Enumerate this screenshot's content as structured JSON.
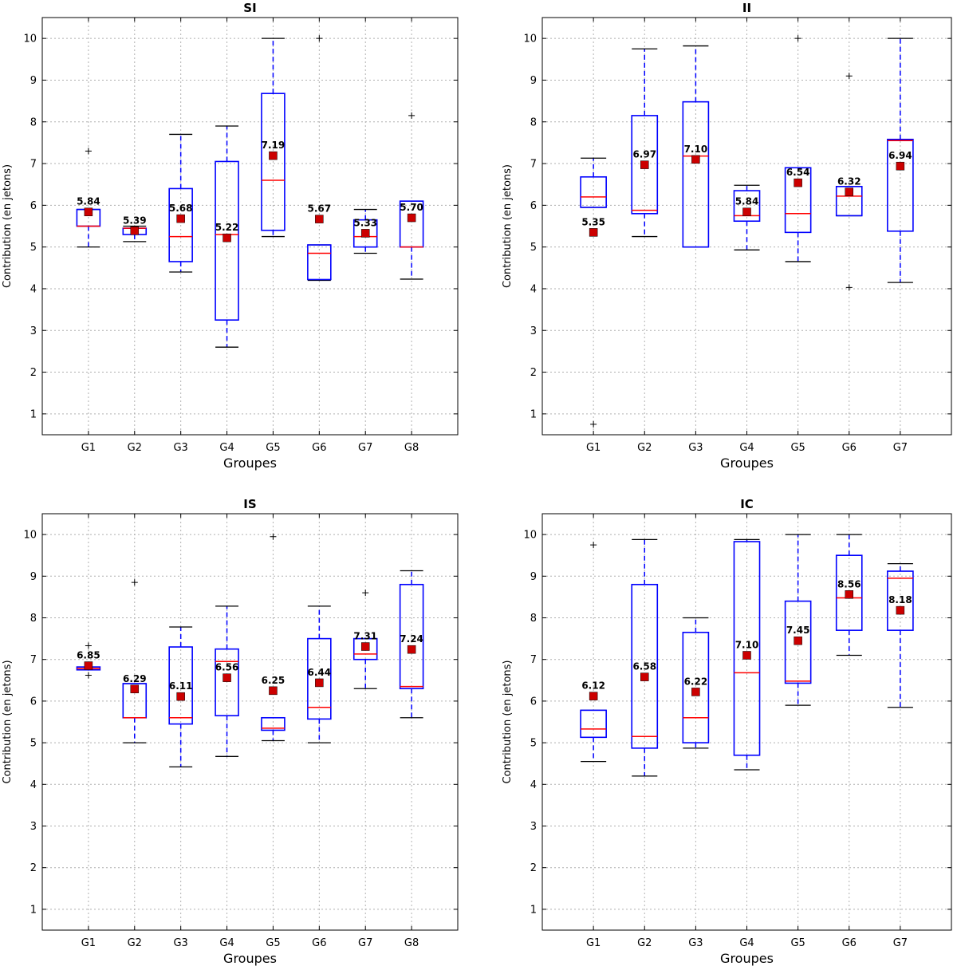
{
  "chart_data": [
    {
      "type": "boxplot",
      "title": "SI",
      "xlabel": "Groupes",
      "ylabel": "Contribution (en jetons)",
      "ylim": [
        0.5,
        10.5
      ],
      "yticks": [
        1,
        2,
        3,
        4,
        5,
        6,
        7,
        8,
        9,
        10
      ],
      "grid": true,
      "categories": [
        "G1",
        "G2",
        "G3",
        "G4",
        "G5",
        "G6",
        "G7",
        "G8"
      ],
      "boxes": [
        {
          "whislo": 5.0,
          "q1": 5.5,
          "med": 5.5,
          "q3": 5.9,
          "whishi": 5.9,
          "fliers": [
            7.3
          ],
          "mean": 5.84,
          "mean_label": "5.84"
        },
        {
          "whislo": 5.13,
          "q1": 5.3,
          "med": 5.45,
          "q3": 5.45,
          "whishi": 5.5,
          "fliers": [],
          "mean": 5.39,
          "mean_label": "5.39"
        },
        {
          "whislo": 4.4,
          "q1": 4.65,
          "med": 5.25,
          "q3": 6.4,
          "whishi": 7.7,
          "fliers": [],
          "mean": 5.68,
          "mean_label": "5.68"
        },
        {
          "whislo": 2.6,
          "q1": 3.25,
          "med": 5.3,
          "q3": 7.05,
          "whishi": 7.9,
          "fliers": [],
          "mean": 5.22,
          "mean_label": "5.22"
        },
        {
          "whislo": 5.25,
          "q1": 5.4,
          "med": 6.6,
          "q3": 8.68,
          "whishi": 10.0,
          "fliers": [],
          "mean": 7.19,
          "mean_label": "7.19"
        },
        {
          "whislo": 4.2,
          "q1": 4.22,
          "med": 4.85,
          "q3": 5.05,
          "whishi": 5.05,
          "fliers": [
            10.0
          ],
          "mean": 5.67,
          "mean_label": "5.67"
        },
        {
          "whislo": 4.85,
          "q1": 5.0,
          "med": 5.25,
          "q3": 5.65,
          "whishi": 5.9,
          "fliers": [],
          "mean": 5.33,
          "mean_label": "5.33"
        },
        {
          "whislo": 4.23,
          "q1": 5.0,
          "med": 5.0,
          "q3": 6.1,
          "whishi": 6.1,
          "fliers": [
            8.15
          ],
          "mean": 5.7,
          "mean_label": "5.70"
        }
      ]
    },
    {
      "type": "boxplot",
      "title": "II",
      "xlabel": "Groupes",
      "ylabel": "Contribution (en jetons)",
      "ylim": [
        0.5,
        10.5
      ],
      "yticks": [
        1,
        2,
        3,
        4,
        5,
        6,
        7,
        8,
        9,
        10
      ],
      "grid": true,
      "categories": [
        "G1",
        "G2",
        "G3",
        "G4",
        "G5",
        "G6",
        "G7"
      ],
      "boxes": [
        {
          "whislo": 5.95,
          "q1": 5.95,
          "med": 6.2,
          "q3": 6.68,
          "whishi": 7.13,
          "fliers": [
            0.75
          ],
          "mean": 5.35,
          "mean_label": "5.35"
        },
        {
          "whislo": 5.25,
          "q1": 5.8,
          "med": 5.88,
          "q3": 8.15,
          "whishi": 9.75,
          "fliers": [],
          "mean": 6.97,
          "mean_label": "6.97"
        },
        {
          "whislo": 5.0,
          "q1": 5.0,
          "med": 7.18,
          "q3": 8.48,
          "whishi": 9.82,
          "fliers": [],
          "mean": 7.1,
          "mean_label": "7.10"
        },
        {
          "whislo": 4.93,
          "q1": 5.62,
          "med": 5.75,
          "q3": 6.35,
          "whishi": 6.48,
          "fliers": [],
          "mean": 5.84,
          "mean_label": "5.84"
        },
        {
          "whislo": 4.65,
          "q1": 5.35,
          "med": 5.8,
          "q3": 6.9,
          "whishi": 6.9,
          "fliers": [
            10.0
          ],
          "mean": 6.54,
          "mean_label": "6.54"
        },
        {
          "whislo": 5.75,
          "q1": 5.75,
          "med": 6.22,
          "q3": 6.45,
          "whishi": 6.45,
          "fliers": [
            9.1,
            4.03
          ],
          "mean": 6.32,
          "mean_label": "6.32"
        },
        {
          "whislo": 4.15,
          "q1": 5.38,
          "med": 7.55,
          "q3": 7.58,
          "whishi": 10.0,
          "fliers": [],
          "mean": 6.94,
          "mean_label": "6.94"
        }
      ]
    },
    {
      "type": "boxplot",
      "title": "IS",
      "xlabel": "Groupes",
      "ylabel": "Contribution (en jetons)",
      "ylim": [
        0.5,
        10.5
      ],
      "yticks": [
        1,
        2,
        3,
        4,
        5,
        6,
        7,
        8,
        9,
        10
      ],
      "grid": true,
      "categories": [
        "G1",
        "G2",
        "G3",
        "G4",
        "G5",
        "G6",
        "G7",
        "G8"
      ],
      "boxes": [
        {
          "whislo": 6.75,
          "q1": 6.75,
          "med": 6.78,
          "q3": 6.82,
          "whishi": 6.82,
          "fliers": [
            7.33,
            6.62
          ],
          "mean": 6.85,
          "mean_label": "6.85"
        },
        {
          "whislo": 5.0,
          "q1": 5.6,
          "med": 5.6,
          "q3": 6.42,
          "whishi": 6.42,
          "fliers": [
            8.85
          ],
          "mean": 6.29,
          "mean_label": "6.29"
        },
        {
          "whislo": 4.42,
          "q1": 5.45,
          "med": 5.6,
          "q3": 7.3,
          "whishi": 7.78,
          "fliers": [],
          "mean": 6.11,
          "mean_label": "6.11"
        },
        {
          "whislo": 4.67,
          "q1": 5.65,
          "med": 6.95,
          "q3": 7.25,
          "whishi": 8.28,
          "fliers": [],
          "mean": 6.56,
          "mean_label": "6.56"
        },
        {
          "whislo": 5.05,
          "q1": 5.3,
          "med": 5.35,
          "q3": 5.6,
          "whishi": 5.6,
          "fliers": [
            9.95
          ],
          "mean": 6.25,
          "mean_label": "6.25"
        },
        {
          "whislo": 5.0,
          "q1": 5.57,
          "med": 5.85,
          "q3": 7.5,
          "whishi": 8.28,
          "fliers": [],
          "mean": 6.44,
          "mean_label": "6.44"
        },
        {
          "whislo": 6.3,
          "q1": 7.0,
          "med": 7.13,
          "q3": 7.5,
          "whishi": 7.5,
          "fliers": [
            8.6
          ],
          "mean": 7.31,
          "mean_label": "7.31"
        },
        {
          "whislo": 5.6,
          "q1": 6.3,
          "med": 6.35,
          "q3": 8.8,
          "whishi": 9.13,
          "fliers": [],
          "mean": 7.24,
          "mean_label": "7.24"
        }
      ]
    },
    {
      "type": "boxplot",
      "title": "IC",
      "xlabel": "Groupes",
      "ylabel": "Contribution (en jetons)",
      "ylim": [
        0.5,
        10.5
      ],
      "yticks": [
        1,
        2,
        3,
        4,
        5,
        6,
        7,
        8,
        9,
        10
      ],
      "grid": true,
      "categories": [
        "G1",
        "G2",
        "G3",
        "G4",
        "G5",
        "G6",
        "G7"
      ],
      "boxes": [
        {
          "whislo": 4.55,
          "q1": 5.13,
          "med": 5.33,
          "q3": 5.78,
          "whishi": 5.78,
          "fliers": [
            9.75
          ],
          "mean": 6.12,
          "mean_label": "6.12"
        },
        {
          "whislo": 4.2,
          "q1": 4.87,
          "med": 5.15,
          "q3": 8.8,
          "whishi": 9.88,
          "fliers": [],
          "mean": 6.58,
          "mean_label": "6.58"
        },
        {
          "whislo": 4.87,
          "q1": 5.0,
          "med": 5.6,
          "q3": 7.65,
          "whishi": 8.0,
          "fliers": [],
          "mean": 6.22,
          "mean_label": "6.22"
        },
        {
          "whislo": 4.35,
          "q1": 4.7,
          "med": 6.68,
          "q3": 9.83,
          "whishi": 9.88,
          "fliers": [],
          "mean": 7.1,
          "mean_label": "7.10"
        },
        {
          "whislo": 5.9,
          "q1": 6.43,
          "med": 6.48,
          "q3": 8.4,
          "whishi": 10.0,
          "fliers": [],
          "mean": 7.45,
          "mean_label": "7.45"
        },
        {
          "whislo": 7.1,
          "q1": 7.7,
          "med": 8.48,
          "q3": 9.5,
          "whishi": 10.0,
          "fliers": [],
          "mean": 8.56,
          "mean_label": "8.56"
        },
        {
          "whislo": 5.85,
          "q1": 7.7,
          "med": 8.95,
          "q3": 9.12,
          "whishi": 9.3,
          "fliers": [],
          "mean": 8.18,
          "mean_label": "8.18"
        }
      ]
    }
  ],
  "colors": {
    "box": "#0000ff",
    "median": "#ff0000",
    "mean_marker": "#cc0000",
    "whisker_cap": "#000000",
    "grid": "#b0b0b0"
  }
}
